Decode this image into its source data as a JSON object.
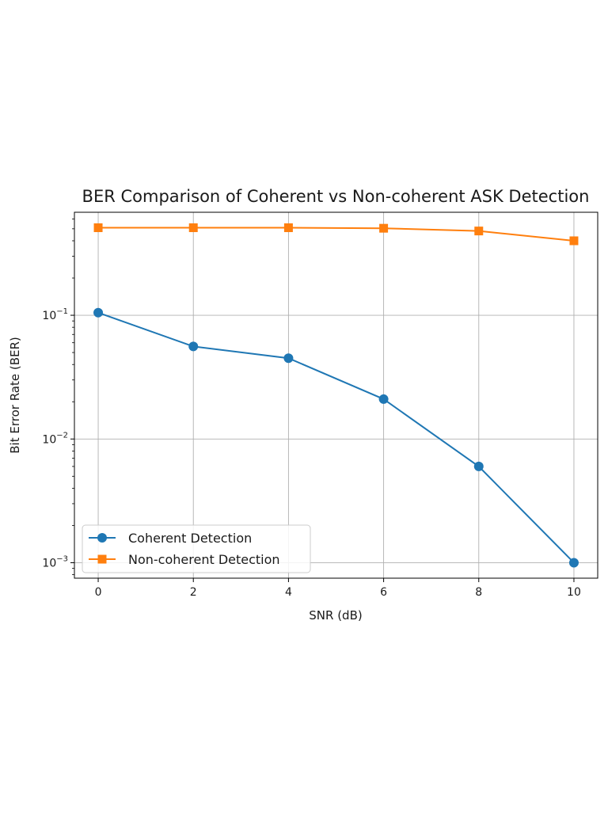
{
  "chart_data": {
    "type": "line",
    "title": "BER Comparison of Coherent vs Non-coherent ASK Detection",
    "xlabel": "SNR (dB)",
    "ylabel": "Bit Error Rate (BER)",
    "x": [
      0,
      2,
      4,
      6,
      8,
      10
    ],
    "xlim": [
      -0.5,
      10.5
    ],
    "ylim": [
      0.00075,
      0.68
    ],
    "yscale": "log",
    "x_ticks": [
      {
        "value": 0,
        "label": "0"
      },
      {
        "value": 2,
        "label": "2"
      },
      {
        "value": 4,
        "label": "4"
      },
      {
        "value": 6,
        "label": "6"
      },
      {
        "value": 8,
        "label": "8"
      },
      {
        "value": 10,
        "label": "10"
      }
    ],
    "y_ticks": [
      {
        "value": 0.001,
        "base": "10",
        "exp": "−3"
      },
      {
        "value": 0.01,
        "base": "10",
        "exp": "−2"
      },
      {
        "value": 0.1,
        "base": "10",
        "exp": "−1"
      }
    ],
    "grid": true,
    "legend_position": "lower-left",
    "series": [
      {
        "name": "Coherent Detection",
        "color": "#1f77b4",
        "marker": "circle",
        "values": [
          0.105,
          0.056,
          0.045,
          0.021,
          0.006,
          0.001
        ]
      },
      {
        "name": "Non-coherent Detection",
        "color": "#ff7f0e",
        "marker": "square",
        "values": [
          0.51,
          0.51,
          0.51,
          0.505,
          0.48,
          0.4
        ]
      }
    ]
  }
}
